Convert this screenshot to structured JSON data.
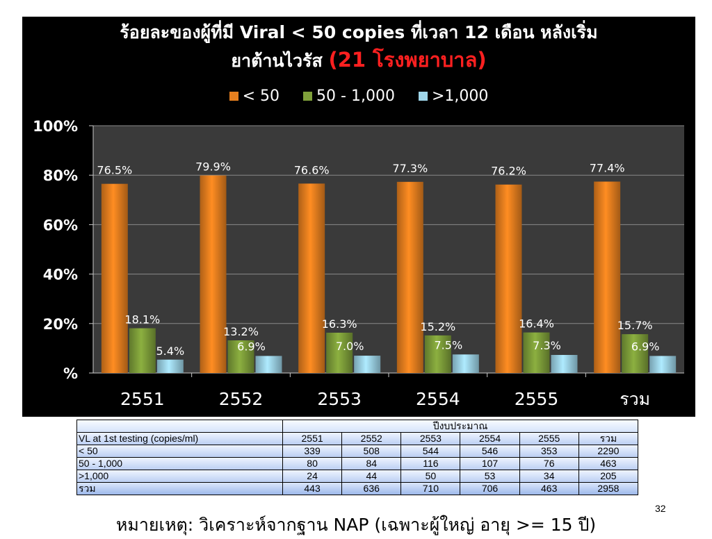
{
  "slide": {
    "title_line1": "ร้อยละของผู้ที่มี Viral < 50 copies ที่เวลา 12 เดือน หลังเริ่ม",
    "title_line2": "ยาต้านไวรัส",
    "title_highlight": "(21 โรงพยาบาล)",
    "slide_number": "32",
    "footnote": "หมายเหตุ: วิเคราะห์จากฐาน NAP (เฉพาะผู้ใหญ่ อายุ >= 15 ปี)"
  },
  "chart_data": {
    "type": "bar",
    "categories": [
      "2551",
      "2552",
      "2553",
      "2554",
      "2555",
      "รวม"
    ],
    "series": [
      {
        "name": "< 50",
        "values": [
          76.5,
          79.9,
          76.6,
          77.3,
          76.2,
          77.4
        ],
        "labels": [
          "76.5%",
          "79.9%",
          "76.6%",
          "77.3%",
          "76.2%",
          "77.4%"
        ],
        "color": "#e8801f"
      },
      {
        "name": "50 - 1,000",
        "values": [
          18.1,
          13.2,
          16.3,
          15.2,
          16.4,
          15.7
        ],
        "labels": [
          "18.1%",
          "13.2%",
          "16.3%",
          "15.2%",
          "16.4%",
          "15.7%"
        ],
        "color": "#7fa03a"
      },
      {
        "name": ">1,000",
        "values": [
          5.4,
          6.9,
          7.0,
          7.5,
          7.3,
          6.9
        ],
        "labels": [
          "5.4%",
          "6.9%",
          "7.0%",
          "7.5%",
          "7.3%",
          "6.9%"
        ],
        "color": "#9fd6ea"
      }
    ],
    "ylim": [
      0,
      100
    ],
    "yticks": [
      0,
      20,
      40,
      60,
      80,
      100
    ],
    "ytick_labels": [
      "%",
      "20%",
      "40%",
      "60%",
      "80%",
      "100%"
    ],
    "grid": true,
    "legend_position": "top",
    "background": "#000000",
    "plot_background": "#3a3a3a"
  },
  "table": {
    "group_header": "ปีงบประมาณ",
    "row_header": "VL at 1st testing (copies/ml)",
    "columns": [
      "2551",
      "2552",
      "2553",
      "2554",
      "2555",
      "รวม"
    ],
    "rows": [
      {
        "label": "< 50",
        "values": [
          "339",
          "508",
          "544",
          "546",
          "353",
          "2290"
        ]
      },
      {
        "label": "50 - 1,000",
        "values": [
          "80",
          "84",
          "116",
          "107",
          "76",
          "463"
        ]
      },
      {
        "label": ">1,000",
        "values": [
          "24",
          "44",
          "50",
          "53",
          "34",
          "205"
        ]
      },
      {
        "label": "รวม",
        "values": [
          "443",
          "636",
          "710",
          "706",
          "463",
          "2958"
        ]
      }
    ]
  }
}
